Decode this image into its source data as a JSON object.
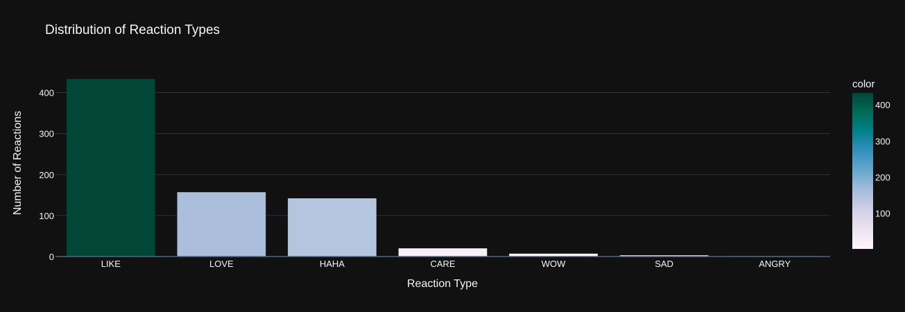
{
  "chart_data": {
    "type": "bar",
    "title": "Distribution of Reaction Types",
    "xlabel": "Reaction Type",
    "ylabel": "Number of Reactions",
    "categories": [
      "LIKE",
      "LOVE",
      "HAHA",
      "CARE",
      "WOW",
      "SAD",
      "ANGRY"
    ],
    "values": [
      433,
      157,
      142,
      20,
      7,
      3,
      1
    ],
    "ylim": [
      0,
      433
    ],
    "yticks": [
      0,
      100,
      200,
      300,
      400
    ],
    "grid": true,
    "colorbar": {
      "title": "color",
      "range": [
        1,
        433
      ],
      "ticks": [
        100,
        200,
        300,
        400
      ],
      "colorscale": [
        "#fff7fb",
        "#ece2f0",
        "#d0d1e6",
        "#a6bddb",
        "#67a9cf",
        "#3690c0",
        "#02818a",
        "#016c59",
        "#014636"
      ]
    },
    "background": "#111111",
    "theme": "plotly_dark"
  }
}
